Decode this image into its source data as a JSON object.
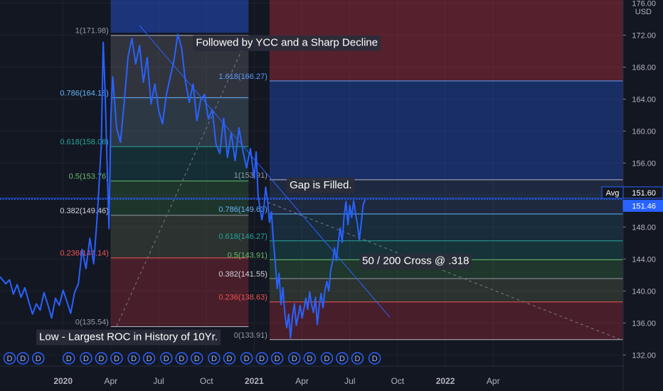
{
  "chart_data": {
    "type": "line",
    "instrument_unit": "USD",
    "ylim": [
      130.6,
      176.4
    ],
    "y_ticks": [
      "132.00",
      "136.00",
      "140.00",
      "144.00",
      "148.00",
      "152.00",
      "156.00",
      "160.00",
      "164.00",
      "168.00",
      "172.00",
      "176.00"
    ],
    "x_ticks": [
      "2020",
      "Apr",
      "Jul",
      "Oct",
      "2021",
      "Apr",
      "Jul",
      "Oct",
      "2022",
      "Apr"
    ],
    "x_tick_bold": [
      "2020",
      "2021",
      "2022"
    ],
    "series": [
      {
        "color": "#2962ff",
        "points": [
          [
            2019.67,
            141.8
          ],
          [
            2019.7,
            140.9
          ],
          [
            2019.72,
            141.4
          ],
          [
            2019.74,
            139.6
          ],
          [
            2019.76,
            140.8
          ],
          [
            2019.78,
            139.2
          ],
          [
            2019.8,
            140.4
          ],
          [
            2019.82,
            138.7
          ],
          [
            2019.84,
            137.1
          ],
          [
            2019.86,
            138.4
          ],
          [
            2019.88,
            137.6
          ],
          [
            2019.9,
            139.8
          ],
          [
            2019.92,
            138.3
          ],
          [
            2019.94,
            136.6
          ],
          [
            2019.96,
            139.1
          ],
          [
            2019.98,
            138.2
          ],
          [
            2020.0,
            140.1
          ],
          [
            2020.02,
            138.7
          ],
          [
            2020.04,
            137.2
          ],
          [
            2020.06,
            139.8
          ],
          [
            2020.08,
            140.9
          ],
          [
            2020.1,
            145.2
          ],
          [
            2020.12,
            142.8
          ],
          [
            2020.14,
            146.6
          ],
          [
            2020.16,
            143.4
          ],
          [
            2020.18,
            149.7
          ],
          [
            2020.2,
            158.3
          ],
          [
            2020.21,
            171.1
          ],
          [
            2020.22,
            164.8
          ],
          [
            2020.23,
            156.1
          ],
          [
            2020.24,
            147.8
          ],
          [
            2020.25,
            162.0
          ],
          [
            2020.26,
            166.8
          ],
          [
            2020.28,
            160.4
          ],
          [
            2020.3,
            158.6
          ],
          [
            2020.32,
            163.7
          ],
          [
            2020.34,
            169.3
          ],
          [
            2020.36,
            171.6
          ],
          [
            2020.38,
            168.4
          ],
          [
            2020.4,
            170.7
          ],
          [
            2020.42,
            166.1
          ],
          [
            2020.44,
            169.2
          ],
          [
            2020.46,
            163.4
          ],
          [
            2020.48,
            165.9
          ],
          [
            2020.5,
            162.6
          ],
          [
            2020.52,
            160.9
          ],
          [
            2020.54,
            164.5
          ],
          [
            2020.56,
            166.7
          ],
          [
            2020.58,
            168.8
          ],
          [
            2020.6,
            172.1
          ],
          [
            2020.62,
            170.4
          ],
          [
            2020.64,
            166.2
          ],
          [
            2020.66,
            163.6
          ],
          [
            2020.68,
            165.9
          ],
          [
            2020.7,
            161.3
          ],
          [
            2020.72,
            163.9
          ],
          [
            2020.74,
            164.6
          ],
          [
            2020.76,
            161.5
          ],
          [
            2020.78,
            162.7
          ],
          [
            2020.8,
            158.4
          ],
          [
            2020.82,
            157.2
          ],
          [
            2020.84,
            161.6
          ],
          [
            2020.86,
            156.7
          ],
          [
            2020.88,
            159.8
          ],
          [
            2020.9,
            156.3
          ],
          [
            2020.92,
            160.4
          ],
          [
            2020.94,
            157.6
          ],
          [
            2020.96,
            155.4
          ],
          [
            2020.98,
            157.8
          ],
          [
            2020.99,
            155.9
          ],
          [
            2021.0,
            154.1
          ],
          [
            2021.01,
            157.4
          ],
          [
            2021.02,
            151.9
          ],
          [
            2021.03,
            150.5
          ],
          [
            2021.04,
            148.9
          ],
          [
            2021.05,
            150.2
          ],
          [
            2021.06,
            153.0
          ],
          [
            2021.07,
            151.2
          ],
          [
            2021.08,
            148.6
          ],
          [
            2021.09,
            149.9
          ],
          [
            2021.1,
            146.3
          ],
          [
            2021.11,
            143.7
          ],
          [
            2021.12,
            140.3
          ],
          [
            2021.13,
            142.2
          ],
          [
            2021.14,
            138.3
          ],
          [
            2021.15,
            140.4
          ],
          [
            2021.16,
            137.2
          ],
          [
            2021.17,
            135.4
          ],
          [
            2021.18,
            137.1
          ],
          [
            2021.19,
            134.1
          ],
          [
            2021.2,
            136.8
          ],
          [
            2021.21,
            138.4
          ],
          [
            2021.22,
            135.7
          ],
          [
            2021.23,
            136.9
          ],
          [
            2021.24,
            138.2
          ],
          [
            2021.25,
            136.6
          ],
          [
            2021.26,
            137.8
          ],
          [
            2021.27,
            139.1
          ],
          [
            2021.28,
            137.7
          ],
          [
            2021.29,
            139.9
          ],
          [
            2021.3,
            138.3
          ],
          [
            2021.31,
            137.3
          ],
          [
            2021.32,
            139.2
          ],
          [
            2021.33,
            135.8
          ],
          [
            2021.34,
            138.1
          ],
          [
            2021.35,
            139.7
          ],
          [
            2021.36,
            137.9
          ],
          [
            2021.37,
            140.1
          ],
          [
            2021.38,
            141.2
          ],
          [
            2021.39,
            140.0
          ],
          [
            2021.4,
            142.6
          ],
          [
            2021.41,
            143.7
          ],
          [
            2021.42,
            145.4
          ],
          [
            2021.43,
            143.8
          ],
          [
            2021.44,
            146.2
          ],
          [
            2021.45,
            147.9
          ],
          [
            2021.46,
            146.1
          ],
          [
            2021.47,
            149.4
          ],
          [
            2021.48,
            151.2
          ],
          [
            2021.49,
            148.3
          ],
          [
            2021.5,
            150.7
          ],
          [
            2021.51,
            149.2
          ],
          [
            2021.52,
            151.3
          ],
          [
            2021.53,
            149.7
          ],
          [
            2021.54,
            148.3
          ],
          [
            2021.55,
            146.4
          ],
          [
            2021.56,
            148.6
          ],
          [
            2021.57,
            150.8
          ],
          [
            2021.58,
            151.4
          ]
        ]
      }
    ],
    "fib_sets": [
      {
        "x_range": [
          2020.25,
          2020.97
        ],
        "levels": [
          {
            "label": "1(171.98)",
            "value": 171.98,
            "label_color": "#9598a1",
            "line": "#b2b5be",
            "fill_below": "rgba(158,158,158,0.22)"
          },
          {
            "label": "0.786(164.18)",
            "value": 164.18,
            "label_color": "#64b5f6",
            "line": "#64b5f6",
            "fill_below": "rgba(120,150,170,0.26)"
          },
          {
            "label": "0.618(158.06)",
            "value": 158.06,
            "label_color": "#26a69a",
            "line": "#26a69a",
            "fill_below": "rgba(38,166,154,0.16)"
          },
          {
            "label": "0.5(153.76)",
            "value": 153.76,
            "label_color": "#66bb6a",
            "line": "#66bb6a",
            "fill_below": "rgba(76,175,80,0.20)"
          },
          {
            "label": "0.382(149.46)",
            "value": 149.46,
            "label_color": "#d1d4dc",
            "line": "#9598a1",
            "fill_below": "rgba(120,140,90,0.24)"
          },
          {
            "label": "0.236(144.14)",
            "value": 144.14,
            "label_color": "#ef5350",
            "line": "#ef5350",
            "fill_below": "rgba(242,54,69,0.24)"
          },
          {
            "label": "0(135.54)",
            "value": 135.54,
            "label_color": "#9598a1",
            "line": "#b2b5be",
            "fill_below": null
          }
        ]
      },
      {
        "x_range": [
          2021.08,
          2022.93
        ],
        "levels": [
          {
            "label": "1.618(166.27)",
            "value": 166.27,
            "label_color": "#5b9cf6",
            "line": "#5b9cf6",
            "fill_below": "rgba(41,98,255,0.30)"
          },
          {
            "label": "1(153.91)",
            "value": 153.91,
            "label_color": "#9598a1",
            "line": "#b2b5be",
            "fill_below": "rgba(60,90,140,0.28)"
          },
          {
            "label": "0.786(149.63)",
            "value": 149.63,
            "label_color": "#64b5f6",
            "line": "#64b5f6",
            "fill_below": "rgba(40,100,130,0.28)"
          },
          {
            "label": "0.618(146.27)",
            "value": 146.27,
            "label_color": "#26a69a",
            "line": "#26a69a",
            "fill_below": "rgba(38,166,154,0.20)"
          },
          {
            "label": "0.5(143.91)",
            "value": 143.91,
            "label_color": "#66bb6a",
            "line": "#66bb6a",
            "fill_below": "rgba(76,175,80,0.22)"
          },
          {
            "label": "0.382(141.55)",
            "value": 141.55,
            "label_color": "#d1d4dc",
            "line": "#9598a1",
            "fill_below": "rgba(120,140,90,0.24)"
          },
          {
            "label": "0.236(138.63)",
            "value": 138.63,
            "label_color": "#ef5350",
            "line": "#ef5350",
            "fill_below": "rgba(242,54,69,0.24)"
          },
          {
            "label": "0(133.91)",
            "value": 133.91,
            "label_color": "#9598a1",
            "line": "#b2b5be",
            "fill_below": null
          }
        ]
      }
    ],
    "fib_extension_zones": [
      {
        "x_range": [
          2021.08,
          2022.93
        ],
        "from": 166.27,
        "to": 176.4,
        "fill": "rgba(242,54,69,0.30)"
      }
    ],
    "time_bands": [
      {
        "x_range": [
          2020.25,
          2020.97
        ],
        "from": 172.3,
        "to": 176.4,
        "fill": "rgba(41,98,255,0.40)"
      }
    ],
    "trend_lines": [
      {
        "from": [
          2020.4,
          173.2
        ],
        "to": [
          2021.71,
          136.7
        ],
        "color": "#2962ff",
        "dash": false
      },
      {
        "from": [
          2021.07,
          151.1
        ],
        "to": [
          2022.93,
          133.8
        ],
        "color": "#787b86",
        "dash": true
      },
      {
        "from": [
          2020.28,
          135.6
        ],
        "to": [
          2020.97,
          172.0
        ],
        "color": "#787b86",
        "dash": true
      }
    ],
    "horizontal_lines": [
      {
        "value": 151.6,
        "color": "#2962ff",
        "dash": false
      },
      {
        "value": 151.46,
        "color": "#2962ff",
        "dash": true
      }
    ],
    "price_labels": [
      {
        "prefix": "Avg",
        "text": "151.60",
        "value": 151.6,
        "bg": "#131722",
        "fg": "#ffffff",
        "border": "#2962ff"
      },
      {
        "prefix": "",
        "text": "151.46",
        "value": 151.46,
        "bg": "#2962ff",
        "fg": "#ffffff",
        "border": "#2962ff"
      }
    ],
    "annotations": [
      {
        "text": "Followed by YCC and a Sharp Decline",
        "x": 2020.68,
        "y": 171.0
      },
      {
        "text": "Gap is Filled.",
        "x": 2021.17,
        "y": 153.2
      },
      {
        "text": "50 / 200 Cross @ .318",
        "x": 2021.55,
        "y": 143.7
      },
      {
        "text": "Low - Largest ROC in History of 10Yr.",
        "x": 2019.86,
        "y": 134.2
      }
    ],
    "dividend_markers": {
      "glyph": "D",
      "color": "#2962ff",
      "x": [
        2019.72,
        2019.79,
        2019.87,
        2020.03,
        2020.12,
        2020.2,
        2020.28,
        2020.37,
        2020.45,
        2020.54,
        2020.62,
        2020.7,
        2020.79,
        2020.87,
        2020.96,
        2021.04,
        2021.12,
        2021.21,
        2021.29,
        2021.38,
        2021.46,
        2021.54,
        2021.63
      ]
    }
  }
}
